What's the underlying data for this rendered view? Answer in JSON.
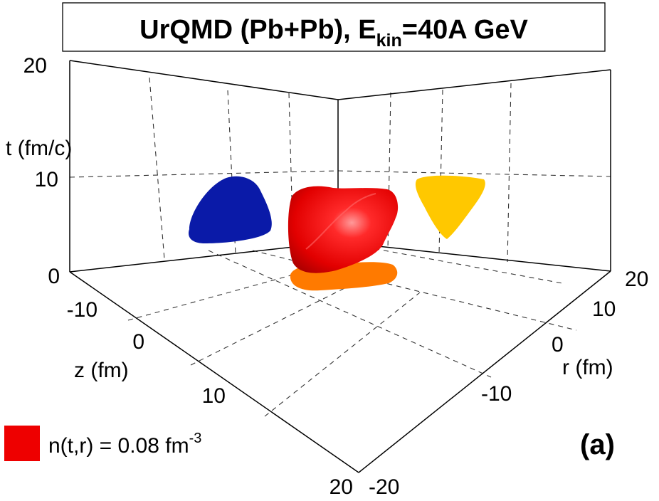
{
  "chart_data": {
    "type": "3d-isosurface",
    "title": "UrQMD (Pb+Pb), E",
    "title_subscript": "kin",
    "title_suffix": "=40A GeV",
    "axes": {
      "t": {
        "label": "t (fm/c)",
        "range": [
          0,
          20
        ],
        "ticks": [
          "0",
          "10",
          "20"
        ]
      },
      "z": {
        "label": "z (fm)",
        "range": [
          -20,
          20
        ],
        "ticks": [
          "-10",
          "0",
          "10",
          "20"
        ]
      },
      "r": {
        "label": "r (fm)",
        "range": [
          -20,
          20
        ],
        "ticks": [
          "-20",
          "-10",
          "0",
          "10",
          "20"
        ]
      }
    },
    "grid": true,
    "surfaces": [
      {
        "name": "isosurface",
        "projection": "none",
        "color": "#ee0000"
      },
      {
        "name": "projection-t-z",
        "projection": "back wall (t-z plane)",
        "color": "#0a1aa8"
      },
      {
        "name": "projection-t-r",
        "projection": "right wall (t-r plane)",
        "color": "#ffc800"
      },
      {
        "name": "projection-z-r",
        "projection": "floor (z-r plane)",
        "color": "#ff7a00"
      }
    ],
    "legend": {
      "text": "n(t,r) = 0.08 fm",
      "superscript": "-3",
      "color": "#ee0000",
      "position": "bottom-left"
    },
    "panel_label": "(a)"
  }
}
